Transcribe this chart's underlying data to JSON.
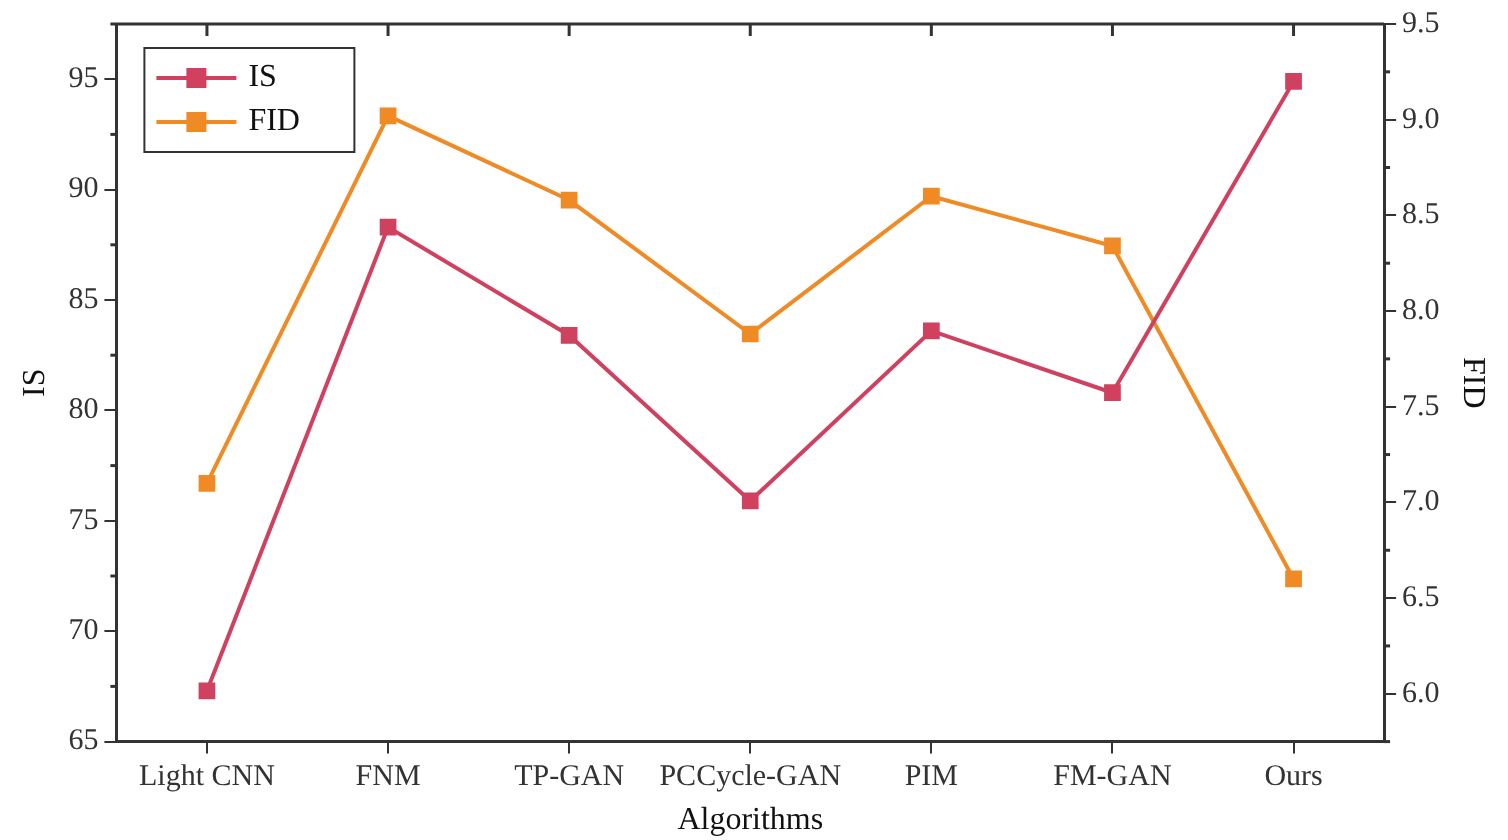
{
  "chart_data": {
    "type": "line",
    "xlabel": "Algorithms",
    "ylabel": "IS",
    "y2label": "FID",
    "categories": [
      "Light CNN",
      "FNM",
      "TP-GAN",
      "PCCycle-GAN",
      "PIM",
      "FM-GAN",
      "Ours"
    ],
    "series": [
      {
        "name": "IS",
        "color": "#d0415f",
        "values": [
          67.3,
          88.3,
          83.4,
          75.9,
          83.6,
          80.8,
          94.9
        ]
      },
      {
        "name": "FID",
        "color": "#f08a24",
        "axis": "y2",
        "values": [
          7.1,
          9.02,
          8.58,
          7.88,
          8.6,
          8.34,
          6.6
        ]
      }
    ],
    "ylim": [
      65,
      97.5
    ],
    "yticks": [
      65,
      70,
      75,
      80,
      85,
      90,
      95
    ],
    "y2lim": [
      5.75,
      9.5
    ],
    "y2ticks": [
      {
        "value": 6,
        "label": "6.0"
      },
      {
        "value": 6.5,
        "label": "6.5"
      },
      {
        "value": 7,
        "label": "7.0"
      },
      {
        "value": 7.5,
        "label": "7.5"
      },
      {
        "value": 8,
        "label": "8.0"
      },
      {
        "value": 8.5,
        "label": "8.5"
      },
      {
        "value": 9,
        "label": "9.0"
      },
      {
        "value": 9.5,
        "label": "9.5"
      }
    ],
    "grid": false,
    "legend": "top left",
    "marker": "square",
    "line_style": "solid"
  }
}
